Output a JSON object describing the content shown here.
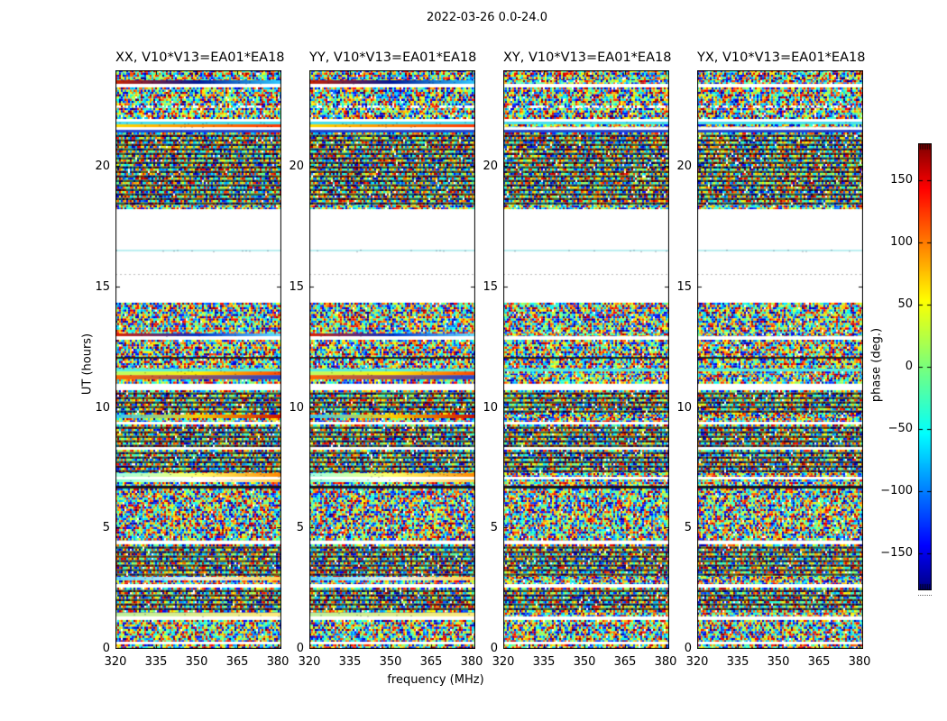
{
  "figure": {
    "title": "2022-03-26 0.0-24.0",
    "background": "#ffffff"
  },
  "panels": [
    {
      "title": "XX, V10*V13=EA01*EA18",
      "seed": 101
    },
    {
      "title": "YY, V10*V13=EA01*EA18",
      "seed": 202
    },
    {
      "title": "XY, V10*V13=EA01*EA18",
      "seed": 303
    },
    {
      "title": "YX, V10*V13=EA01*EA18",
      "seed": 404
    }
  ],
  "axes": {
    "x_label": "frequency (MHz)",
    "y_label": "UT (hours)",
    "x_tick_labels": [
      "320",
      "335",
      "350",
      "365",
      "380"
    ],
    "y_tick_labels": [
      "0",
      "5",
      "10",
      "15",
      "20"
    ]
  },
  "colorbar": {
    "label": "phase (deg.)",
    "tick_labels": [
      "150",
      "100",
      "50",
      "0",
      "−50",
      "−100",
      "−150"
    ],
    "tick_values": [
      150,
      100,
      50,
      0,
      -50,
      -100,
      -150
    ],
    "range": [
      -180,
      180
    ]
  },
  "chart_data": {
    "type": "heatmap",
    "title": "2022-03-26 0.0-24.0",
    "subplot_titles": [
      "XX, V10*V13=EA01*EA18",
      "YY, V10*V13=EA01*EA18",
      "XY, V10*V13=EA01*EA18",
      "YX, V10*V13=EA01*EA18"
    ],
    "xlabel": "frequency (MHz)",
    "ylabel": "UT (hours)",
    "value_label": "phase (deg.)",
    "xlim": [
      320,
      381
    ],
    "ylim": [
      0,
      24
    ],
    "x_ticks": [
      320,
      335,
      350,
      365,
      380
    ],
    "y_ticks": [
      0,
      5,
      10,
      15,
      20
    ],
    "value_range": [
      -180,
      180
    ],
    "colorbar_ticks": [
      150,
      100,
      50,
      0,
      -50,
      -100,
      -150
    ],
    "colormap": "jet",
    "colormap_stops": [
      [
        0,
        [
          0,
          0,
          128
        ]
      ],
      [
        0.1,
        [
          0,
          0,
          255
        ]
      ],
      [
        0.35,
        [
          0,
          255,
          255
        ]
      ],
      [
        0.5,
        [
          122,
          255,
          124
        ]
      ],
      [
        0.65,
        [
          255,
          255,
          0
        ]
      ],
      [
        0.9,
        [
          255,
          0,
          0
        ]
      ],
      [
        1,
        [
          128,
          0,
          0
        ]
      ]
    ],
    "content": "Random interferometric visibility phase (deg.) vs frequency (MHz) and UT (hours) for four polarization products of baseline V10*V13=EA01*EA18; horizontal white bands are flagged/missing time ranges.",
    "time_gaps_ut": [
      [
        14.36,
        18.24
      ]
    ],
    "bands": [
      {
        "u0": 0.0,
        "u1": 0.19,
        "t": "noise"
      },
      {
        "u0": 0.19,
        "u1": 0.3,
        "t": "white"
      },
      {
        "u0": 0.3,
        "u1": 1.2,
        "t": "noise"
      },
      {
        "u0": 1.2,
        "u1": 1.35,
        "t": "white"
      },
      {
        "u0": 1.35,
        "u1": 1.5,
        "t": "stripe",
        "c": [
          "#bbf09a",
          "#ffe97a"
        ],
        "p": [
          0,
          1
        ]
      },
      {
        "u0": 1.5,
        "u1": 2.54,
        "t": "noise_striped"
      },
      {
        "u0": 2.54,
        "u1": 2.69,
        "t": "white"
      },
      {
        "u0": 2.69,
        "u1": 2.84,
        "t": "noise"
      },
      {
        "u0": 2.84,
        "u1": 2.99,
        "t": "stripe",
        "c": [
          "#55d6ff",
          "#f2f2f2",
          "#ffd24d"
        ],
        "p": [
          0,
          1
        ]
      },
      {
        "u0": 2.99,
        "u1": 4.34,
        "t": "noise_striped"
      },
      {
        "u0": 4.34,
        "u1": 4.49,
        "t": "white"
      },
      {
        "u0": 4.49,
        "u1": 6.65,
        "t": "noise"
      },
      {
        "u0": 6.65,
        "u1": 6.77,
        "t": "stripe",
        "c": [
          "#15151f"
        ]
      },
      {
        "u0": 6.77,
        "u1": 6.92,
        "t": "noise"
      },
      {
        "u0": 6.92,
        "u1": 7.03,
        "t": "stripe",
        "c": [
          "#7dffc9",
          "#ffffff",
          "#ffc93a"
        ],
        "p": [
          0,
          1
        ]
      },
      {
        "u0": 7.03,
        "u1": 7.14,
        "t": "white"
      },
      {
        "u0": 7.14,
        "u1": 7.29,
        "t": "stripe",
        "c": [
          "#a0ffe6",
          "#ffff66",
          "#ff8800"
        ],
        "p": [
          0,
          1
        ]
      },
      {
        "u0": 7.29,
        "u1": 8.26,
        "t": "noise_striped"
      },
      {
        "u0": 8.26,
        "u1": 8.37,
        "t": "white"
      },
      {
        "u0": 8.37,
        "u1": 9.31,
        "t": "noise_striped"
      },
      {
        "u0": 9.31,
        "u1": 9.42,
        "t": "white"
      },
      {
        "u0": 9.42,
        "u1": 9.57,
        "t": "noise"
      },
      {
        "u0": 9.57,
        "u1": 9.72,
        "t": "stripe",
        "c": [
          "#33ccff",
          "#ffcc00",
          "#cc1100"
        ],
        "p": [
          0,
          1
        ]
      },
      {
        "u0": 9.72,
        "u1": 10.73,
        "t": "noise_striped"
      },
      {
        "u0": 10.73,
        "u1": 11.0,
        "t": "white"
      },
      {
        "u0": 11.0,
        "u1": 11.18,
        "t": "noise"
      },
      {
        "u0": 11.18,
        "u1": 11.36,
        "t": "stripe",
        "c": [
          "#ff6600",
          "#2244cc"
        ],
        "p": [
          0,
          1
        ]
      },
      {
        "u0": 11.36,
        "u1": 11.51,
        "t": "stripe",
        "c": [
          "#bbff66",
          "#ffee00",
          "#ff4400"
        ],
        "p": [
          0,
          1
        ]
      },
      {
        "u0": 11.51,
        "u1": 11.63,
        "t": "stripe",
        "c": [
          "#55eedd"
        ]
      },
      {
        "u0": 11.63,
        "u1": 12.04,
        "t": "noise"
      },
      {
        "u0": 12.04,
        "u1": 12.11,
        "t": "stripe",
        "c": [
          "#111111"
        ]
      },
      {
        "u0": 12.11,
        "u1": 12.82,
        "t": "noise"
      },
      {
        "u0": 12.82,
        "u1": 12.97,
        "t": "white"
      },
      {
        "u0": 12.97,
        "u1": 13.09,
        "t": "stripe",
        "c": [
          "#dd2200",
          "#0033cc",
          "#66ddff"
        ],
        "p": [
          0,
          1
        ]
      },
      {
        "u0": 13.09,
        "u1": 14.36,
        "t": "noise"
      },
      {
        "u0": 14.36,
        "u1": 15.51,
        "t": "white"
      },
      {
        "u0": 15.51,
        "u1": 15.59,
        "t": "dotted",
        "c": [
          "#bbbbbb"
        ]
      },
      {
        "u0": 15.59,
        "u1": 16.49,
        "t": "white"
      },
      {
        "u0": 16.49,
        "u1": 16.56,
        "t": "stripe",
        "c": [
          "#b8eef0"
        ]
      },
      {
        "u0": 16.56,
        "u1": 18.24,
        "t": "white"
      },
      {
        "u0": 18.24,
        "u1": 18.4,
        "t": "noise"
      },
      {
        "u0": 18.4,
        "u1": 21.42,
        "t": "noise_striped"
      },
      {
        "u0": 21.42,
        "u1": 21.53,
        "t": "stripe",
        "c": [
          "#2244cc"
        ]
      },
      {
        "u0": 21.53,
        "u1": 21.64,
        "t": "white"
      },
      {
        "u0": 21.64,
        "u1": 21.76,
        "t": "stripe",
        "c": [
          "#ffdd00",
          "#ff3300"
        ],
        "p": [
          0,
          1
        ]
      },
      {
        "u0": 21.76,
        "u1": 21.87,
        "t": "stripe",
        "c": [
          "#44ddee"
        ]
      },
      {
        "u0": 21.87,
        "u1": 21.98,
        "t": "white"
      },
      {
        "u0": 21.98,
        "u1": 22.43,
        "t": "noise"
      },
      {
        "u0": 22.43,
        "u1": 22.54,
        "t": "mixed"
      },
      {
        "u0": 22.54,
        "u1": 23.29,
        "t": "noise"
      },
      {
        "u0": 23.29,
        "u1": 23.44,
        "t": "white"
      },
      {
        "u0": 23.44,
        "u1": 23.59,
        "t": "stripe",
        "c": [
          "#cc2200",
          "#001a99",
          "#33ccff"
        ],
        "p": [
          0,
          1
        ]
      },
      {
        "u0": 23.59,
        "u1": 24.0,
        "t": "noise"
      }
    ]
  }
}
